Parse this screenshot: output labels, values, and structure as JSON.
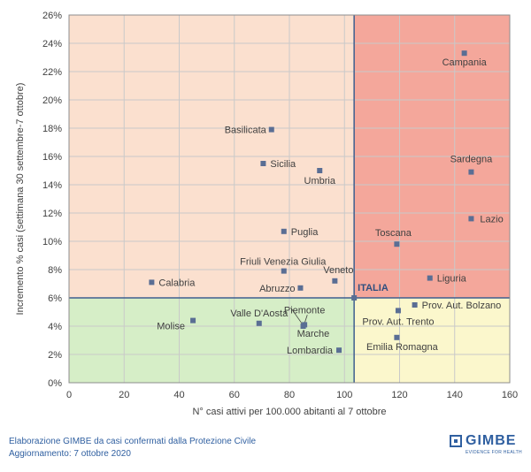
{
  "chart_data": {
    "type": "scatter",
    "title": "",
    "xlabel": "N° casi attivi per 100.000 abitanti al 7 ottobre",
    "ylabel": "Incremento % casi (settimana 30 settembre-7 ottobre)",
    "xlim": [
      0,
      160
    ],
    "ylim": [
      0,
      26
    ],
    "x_ticks": [
      0,
      20,
      40,
      60,
      80,
      100,
      120,
      140,
      160
    ],
    "y_ticks": [
      0,
      2,
      4,
      6,
      8,
      10,
      12,
      14,
      16,
      18,
      20,
      22,
      24,
      26
    ],
    "y_tick_suffix": "%",
    "grid": true,
    "reference": {
      "label": "ITALIA",
      "x": 103.5,
      "y": 6.0
    },
    "quadrant_colors": {
      "low_x_high_y": "#fbe0cf",
      "high_x_high_y": "#f4a79b",
      "low_x_low_y": "#d6eec7",
      "high_x_low_y": "#fbf7cc"
    },
    "point_color": "#5a6e94",
    "line_color": "#3f5f8f",
    "points": [
      {
        "label": "Campania",
        "x": 143.5,
        "y": 23.3
      },
      {
        "label": "Basilicata",
        "x": 73.5,
        "y": 17.9
      },
      {
        "label": "Sicilia",
        "x": 70.5,
        "y": 15.5
      },
      {
        "label": "Umbria",
        "x": 91.0,
        "y": 15.0
      },
      {
        "label": "Sardegna",
        "x": 146.0,
        "y": 14.9
      },
      {
        "label": "Lazio",
        "x": 146.0,
        "y": 11.6
      },
      {
        "label": "Puglia",
        "x": 78.0,
        "y": 10.7
      },
      {
        "label": "Toscana",
        "x": 119.0,
        "y": 9.8
      },
      {
        "label": "Friuli Venezia Giulia",
        "x": 78.0,
        "y": 7.9
      },
      {
        "label": "Liguria",
        "x": 131.0,
        "y": 7.4
      },
      {
        "label": "Calabria",
        "x": 30.0,
        "y": 7.1
      },
      {
        "label": "Veneto",
        "x": 96.5,
        "y": 7.2
      },
      {
        "label": "Abruzzo",
        "x": 84.0,
        "y": 6.7
      },
      {
        "label": "Prov. Aut. Bolzano",
        "x": 125.5,
        "y": 5.5
      },
      {
        "label": "Piemonte",
        "x": 85.5,
        "y": 4.1
      },
      {
        "label": "Prov. Aut. Trento",
        "x": 119.5,
        "y": 5.1
      },
      {
        "label": "Molise",
        "x": 45.0,
        "y": 4.4
      },
      {
        "label": "Valle D'Aosta",
        "x": 69.0,
        "y": 4.2
      },
      {
        "label": "Marche",
        "x": 85.0,
        "y": 4.0
      },
      {
        "label": "Emilia Romagna",
        "x": 119.0,
        "y": 3.2
      },
      {
        "label": "Lombardia",
        "x": 98.0,
        "y": 2.3
      }
    ]
  },
  "footer": {
    "source": "Elaborazione GIMBE da casi confermati dalla Protezione Civile",
    "updated": "Aggiornamento: 7 ottobre 2020"
  },
  "logo": {
    "name": "GIMBE",
    "tagline": "EVIDENCE FOR HEALTH"
  }
}
